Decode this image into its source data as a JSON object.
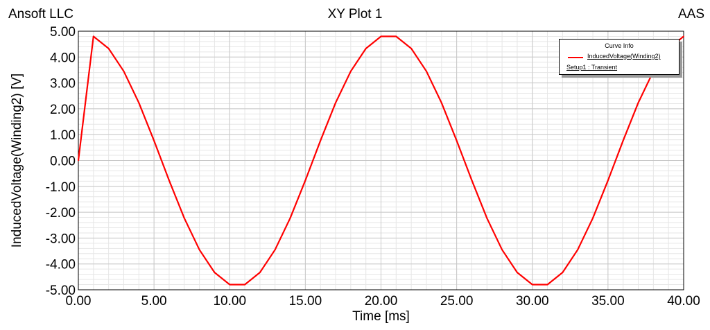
{
  "header": {
    "company": "Ansoft LLC",
    "title": "XY Plot 1",
    "corner": "AAS"
  },
  "legend": {
    "title": "Curve Info",
    "series_name": "InducedVoltage(Winding2)",
    "setup": "Setup1 : Transient"
  },
  "colors": {
    "series": "#ff0000",
    "grid_major": "#c8c8c8",
    "grid_minor": "#e6e6e6"
  },
  "chart_data": {
    "type": "line",
    "title": "XY Plot 1",
    "xlabel": "Time [ms]",
    "ylabel": "InducedVoltage(Winding2) [V]",
    "xlim": [
      0,
      40
    ],
    "ylim": [
      -5,
      5
    ],
    "grid": true,
    "legend_position": "top-right",
    "x_tick_labels": [
      "0.00",
      "5.00",
      "10.00",
      "15.00",
      "20.00",
      "25.00",
      "30.00",
      "35.00",
      "40.00"
    ],
    "y_tick_labels": [
      "5.00",
      "4.00",
      "3.00",
      "2.00",
      "1.00",
      "0.00",
      "-1.00",
      "-2.00",
      "-3.00",
      "-4.00",
      "-5.00"
    ],
    "series": [
      {
        "name": "InducedVoltage(Winding2)",
        "x": [
          0,
          1,
          2,
          3,
          4,
          5,
          6,
          7,
          8,
          9,
          10,
          11,
          12,
          13,
          14,
          15,
          16,
          17,
          18,
          19,
          20,
          21,
          22,
          23,
          24,
          25,
          26,
          27,
          28,
          29,
          30,
          31,
          32,
          33,
          34,
          35,
          36,
          37,
          38,
          39,
          40
        ],
        "values": [
          0,
          4.8,
          4.33,
          3.45,
          2.23,
          0.77,
          -0.77,
          -2.23,
          -3.45,
          -4.33,
          -4.8,
          -4.8,
          -4.33,
          -3.45,
          -2.23,
          -0.77,
          0.77,
          2.23,
          3.45,
          4.33,
          4.8,
          4.8,
          4.33,
          3.45,
          2.23,
          0.77,
          -0.77,
          -2.23,
          -3.45,
          -4.33,
          -4.8,
          -4.8,
          -4.33,
          -3.45,
          -2.23,
          -0.77,
          0.77,
          2.23,
          3.45,
          4.33,
          4.8
        ]
      }
    ]
  }
}
